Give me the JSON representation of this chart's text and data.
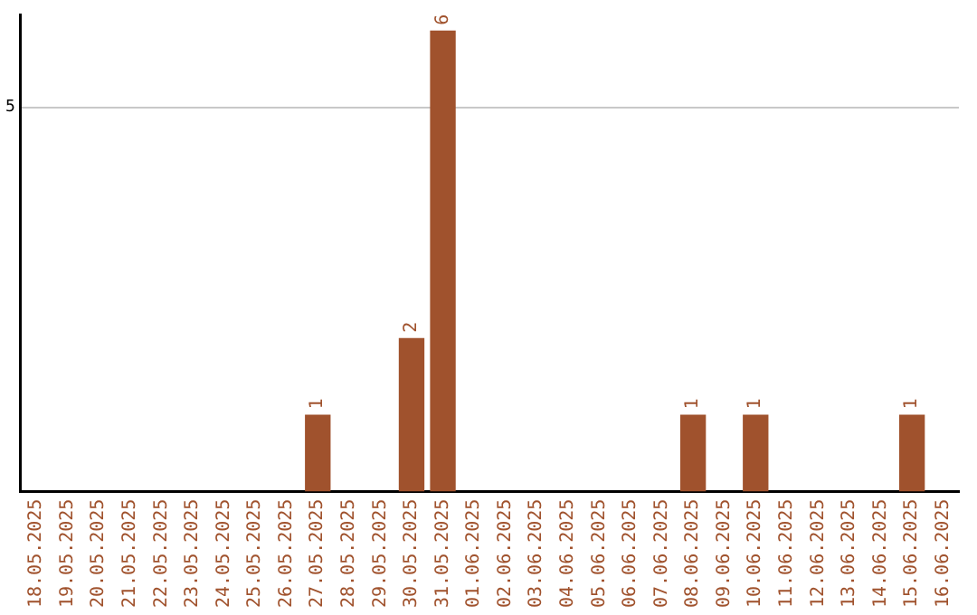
{
  "chart_data": {
    "type": "bar",
    "categories": [
      "18.05.2025",
      "19.05.2025",
      "20.05.2025",
      "21.05.2025",
      "22.05.2025",
      "23.05.2025",
      "24.05.2025",
      "25.05.2025",
      "26.05.2025",
      "27.05.2025",
      "28.05.2025",
      "29.05.2025",
      "30.05.2025",
      "31.05.2025",
      "01.06.2025",
      "02.06.2025",
      "03.06.2025",
      "04.06.2025",
      "05.06.2025",
      "06.06.2025",
      "07.06.2025",
      "08.06.2025",
      "09.06.2025",
      "10.06.2025",
      "11.06.2025",
      "12.06.2025",
      "13.06.2025",
      "14.06.2025",
      "15.06.2025",
      "16.06.2025"
    ],
    "values": [
      0,
      0,
      0,
      0,
      0,
      0,
      0,
      0,
      0,
      1,
      0,
      0,
      2,
      6,
      0,
      0,
      0,
      0,
      0,
      0,
      0,
      1,
      0,
      1,
      0,
      0,
      0,
      0,
      1,
      0
    ],
    "color": "#a0522d",
    "value_labels": [
      null,
      null,
      null,
      null,
      null,
      null,
      null,
      null,
      null,
      "1",
      null,
      null,
      "2",
      "6",
      null,
      null,
      null,
      null,
      null,
      null,
      null,
      "1",
      null,
      "1",
      null,
      null,
      null,
      null,
      "1",
      null
    ],
    "ylim": [
      0,
      6.2
    ],
    "yticks": [
      5
    ],
    "grid": "y",
    "legend": false
  }
}
